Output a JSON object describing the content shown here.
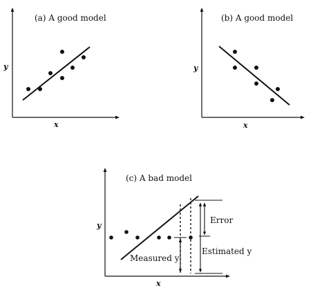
{
  "panels": [
    {
      "title": "(a) A good model",
      "xlabel": "x",
      "ylabel": "y"
    },
    {
      "title": "(b) A good model",
      "xlabel": "x",
      "ylabel": "y"
    },
    {
      "title": "(c) A bad model",
      "xlabel": "x",
      "ylabel": "y"
    }
  ],
  "annotations": {
    "error": "Error",
    "measured": "Measured y",
    "estimated": "Estimated y"
  }
}
